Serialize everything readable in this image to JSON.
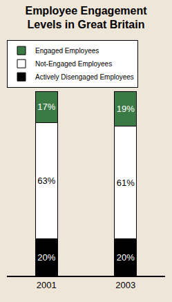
{
  "chart_data": {
    "type": "bar",
    "title": "Employee Engagement Levels in Great Britain",
    "categories": [
      "2001",
      "2003"
    ],
    "series": [
      {
        "name": "Actively Disengaged Employees",
        "color": "#000000",
        "values": [
          20,
          20
        ],
        "value_labels": [
          "20%",
          "20%"
        ]
      },
      {
        "name": "Not-Engaged Employees",
        "color": "#ffffff",
        "values": [
          63,
          61
        ],
        "value_labels": [
          "63%",
          "61%"
        ]
      },
      {
        "name": "Engaged Employees",
        "color": "#3b7a45",
        "values": [
          17,
          19
        ],
        "value_labels": [
          "17%",
          "19%"
        ]
      }
    ],
    "stacked": true,
    "data_labels": true,
    "legend": "top left",
    "tick_labels": "x",
    "grid": false,
    "ylim": [
      0,
      100
    ]
  }
}
